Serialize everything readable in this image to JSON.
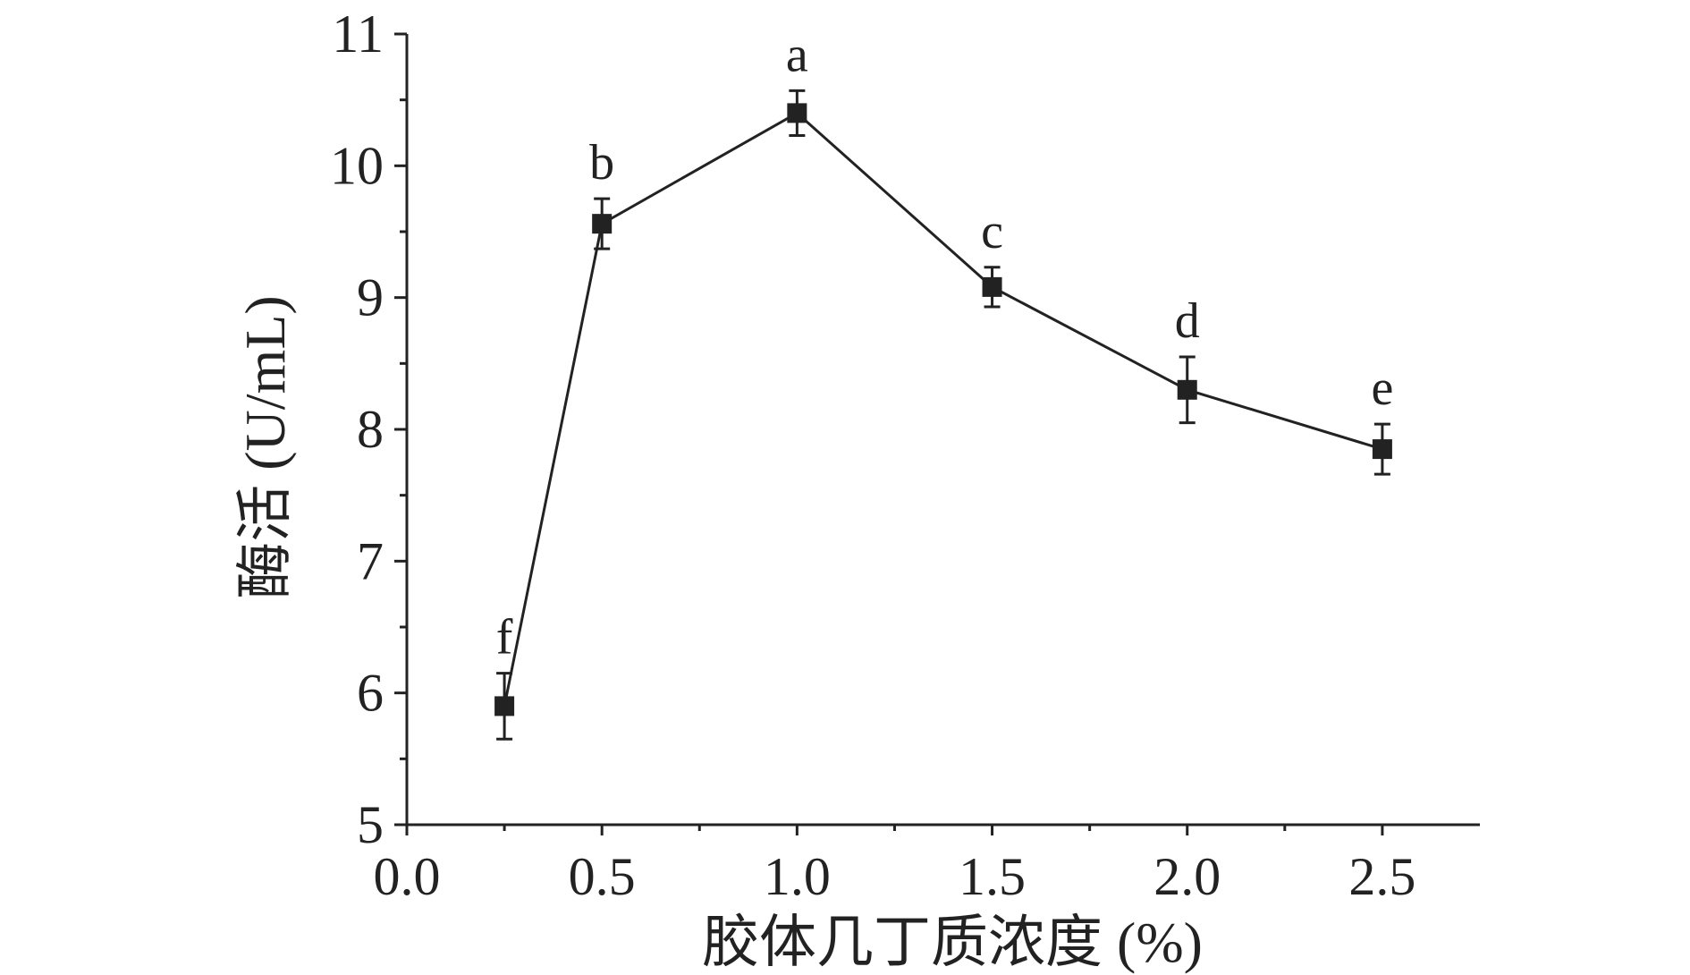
{
  "chart_data": {
    "type": "line",
    "title": "",
    "xlabel": "胶体几丁质浓度 (%)",
    "ylabel": "酶活 (U/mL)",
    "xlim": [
      0.0,
      2.75
    ],
    "ylim": [
      5,
      11
    ],
    "x_ticks": [
      "0.0",
      "0.5",
      "1.0",
      "1.5",
      "2.0",
      "2.5"
    ],
    "y_ticks": [
      "5",
      "6",
      "7",
      "8",
      "9",
      "10",
      "11"
    ],
    "grid": false,
    "legend": "none",
    "series": [
      {
        "color": "#222222",
        "marker": "square",
        "points": [
          {
            "x": 0.25,
            "y": 5.9,
            "err": 0.25,
            "label": "f"
          },
          {
            "x": 0.5,
            "y": 9.56,
            "err": 0.19,
            "label": "b"
          },
          {
            "x": 1.0,
            "y": 10.4,
            "err": 0.17,
            "label": "a"
          },
          {
            "x": 1.5,
            "y": 9.08,
            "err": 0.15,
            "label": "c"
          },
          {
            "x": 2.0,
            "y": 8.3,
            "err": 0.25,
            "label": "d"
          },
          {
            "x": 2.5,
            "y": 7.85,
            "err": 0.19,
            "label": "e"
          }
        ]
      }
    ]
  }
}
